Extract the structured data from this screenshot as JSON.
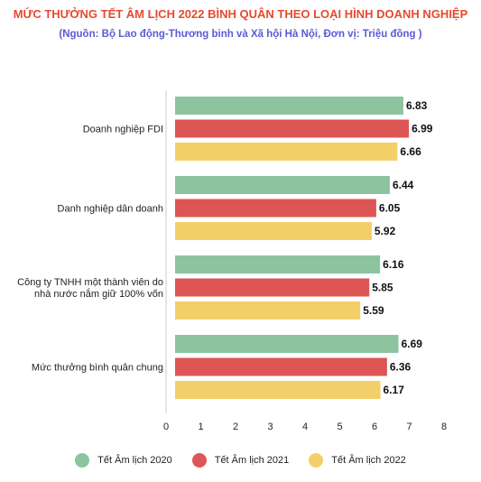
{
  "chart_data": {
    "type": "bar",
    "orientation": "horizontal",
    "title": "MỨC THƯỞNG TẾT ÂM LỊCH 2022 BÌNH QUÂN THEO LOẠI HÌNH DOANH NGHIỆP",
    "subtitle": "(Nguồn: Bộ Lao động-Thương binh và Xã hội Hà Nội, Đơn vị: Triệu đồng )",
    "categories": [
      [
        "Doanh nghiệp FDI"
      ],
      [
        "Danh nghiệp dân doanh"
      ],
      [
        "Công ty TNHH một thành viên do",
        "nhà nước nắm giữ 100% vốn"
      ],
      [
        "Mức thưởng bình quân chung"
      ]
    ],
    "series": [
      {
        "name": "Tết Âm lịch 2020",
        "color": "#8dc4a0",
        "values": [
          6.83,
          6.44,
          6.16,
          6.69
        ]
      },
      {
        "name": "Tết Âm lịch 2021",
        "color": "#de5555",
        "values": [
          6.99,
          6.05,
          5.85,
          6.36
        ]
      },
      {
        "name": "Tết Âm lịch 2022",
        "color": "#f3cf6a",
        "values": [
          6.66,
          5.92,
          5.59,
          6.17
        ]
      }
    ],
    "xlim": [
      0,
      8
    ],
    "xticks": [
      0,
      1,
      2,
      3,
      4,
      5,
      6,
      7,
      8
    ],
    "legend_position": "bottom",
    "grid": false
  }
}
